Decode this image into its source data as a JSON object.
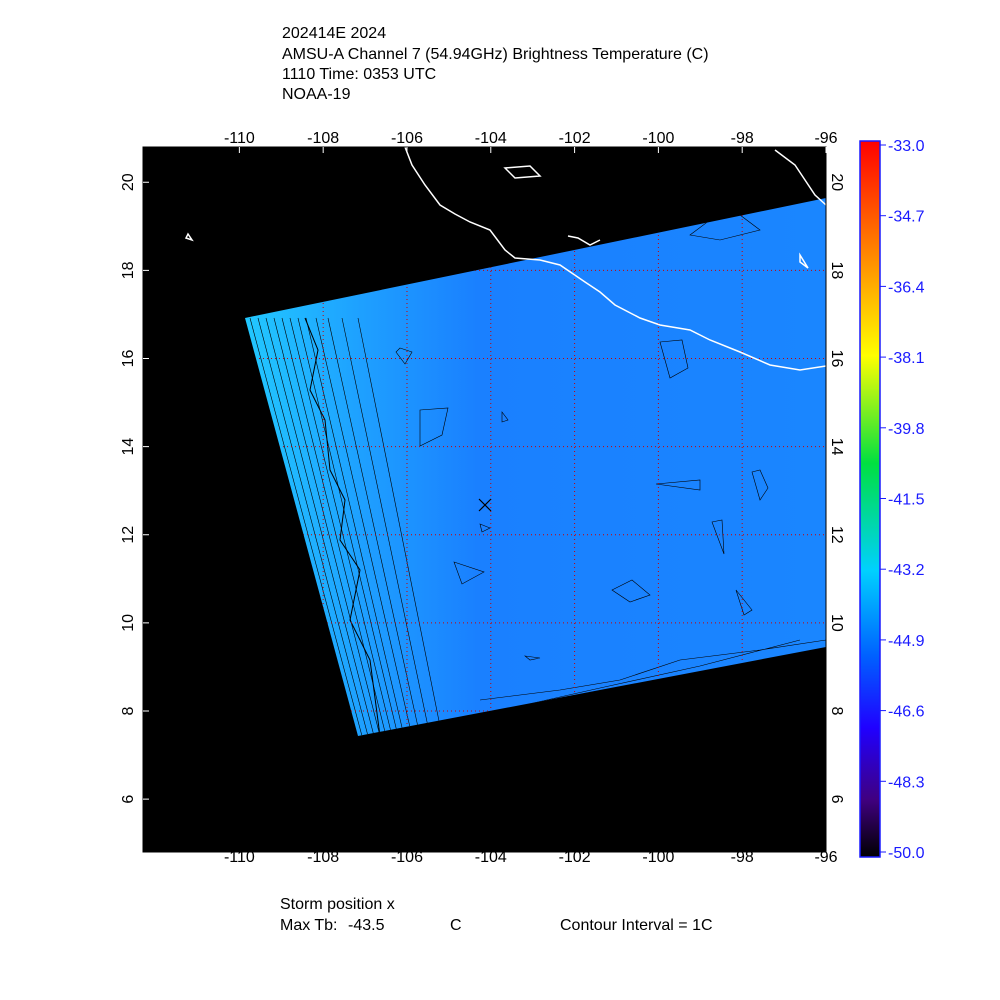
{
  "header": {
    "lines": [
      "202414E 2024",
      "AMSU-A Channel 7 (54.94GHz) Brightness Temperature (C)",
      "1110 Time: 0353 UTC",
      "NOAA-19"
    ]
  },
  "map": {
    "xlim": [
      -112.3,
      -96
    ],
    "ylim": [
      4.8,
      20.8
    ],
    "xticks": [
      -110,
      -108,
      -106,
      -104,
      -102,
      -100,
      -98,
      -96
    ],
    "yticks": [
      6,
      8,
      10,
      12,
      14,
      16,
      18,
      20
    ],
    "grid": true
  },
  "colorbar": {
    "lim": [
      -50,
      -33
    ],
    "ticks": [
      {
        "value": -33,
        "label": "-33.0"
      },
      -34.7,
      -36.4,
      -38.1,
      -39.8,
      -41.5,
      -43.2,
      -44.9,
      -46.6,
      -48.3,
      {
        "value": -50,
        "label": "-50.0"
      }
    ]
  },
  "footer": {
    "storm_label": "Storm position x",
    "max_tb_label": "Max Tb:",
    "max_tb": -43.5,
    "max_tb_unit": "C",
    "contour": "Contour Interval = 1C"
  }
}
